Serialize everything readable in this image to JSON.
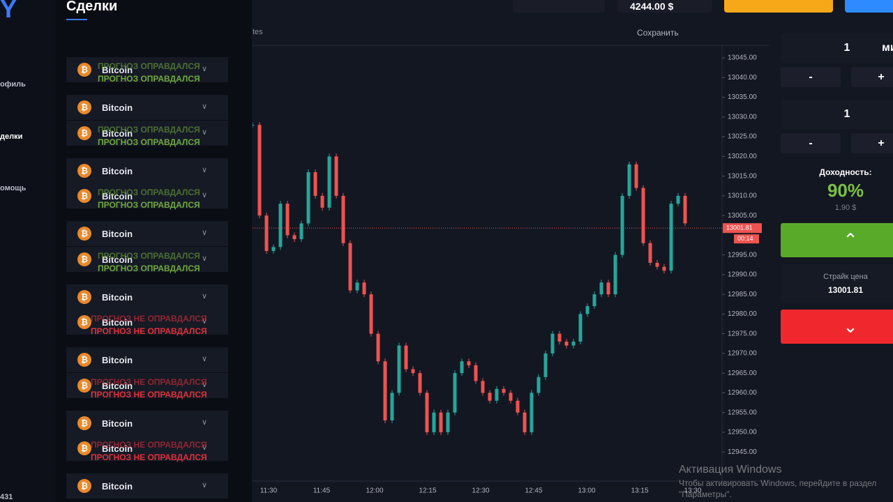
{
  "sidebar": {
    "nav": [
      "офиль",
      "делки",
      "омощь"
    ],
    "footer": "431"
  },
  "deals": {
    "title": "Сделки",
    "items": [
      {
        "asset": "Bitcoin",
        "status": "ПРОГНОЗ ОПРАВДАЛСЯ"
      },
      {
        "asset": "Bitcoin",
        "status": "ПРОГНОЗ ОПРАВДАЛСЯ"
      },
      {
        "asset": "Bitcoin",
        "status": "ПРОГНОЗ ОПРАВДАЛСЯ"
      },
      {
        "asset": "Bitcoin",
        "status": "ПРОГНОЗ ОПРАВДАЛСЯ"
      },
      {
        "asset": "Bitcoin",
        "status": "ПРОГНОЗ ОПРАВДАЛСЯ"
      },
      {
        "asset": "Bitcoin",
        "status": "ПРОГНОЗ ОПРАВДАЛСЯ"
      },
      {
        "asset": "Bitcoin",
        "status": "ПРОГНОЗ ОПРАВДАЛСЯ"
      },
      {
        "asset": "Bitcoin",
        "status": "ПРОГНОЗ ОПРАВДАЛСЯ"
      },
      {
        "asset": "Bitcoin",
        "status": "ПРОГНОЗ НЕ ОПРАВДАЛСЯ"
      },
      {
        "asset": "Bitcoin",
        "status": "ПРОГНОЗ НЕ ОПРАВДАЛСЯ"
      },
      {
        "asset": "Bitcoin",
        "status": "ПРОГНОЗ НЕ ОПРАВДАЛСЯ"
      },
      {
        "asset": "Bitcoin",
        "status": "ПРОГНОЗ НЕ ОПРАВДАЛСЯ"
      },
      {
        "asset": "Bitcoin",
        "status": "ПРОГНОЗ НЕ ОПРАВДАЛСЯ"
      },
      {
        "asset": "Bitcoin",
        "status": "ПРОГНОЗ НЕ ОПРАВДАЛСЯ"
      }
    ]
  },
  "topbar": {
    "balance": "4244.00 $"
  },
  "toolbar": {
    "interval": "tes",
    "save": "Сохранить"
  },
  "chart_data": {
    "type": "candlestick",
    "closes": [
      13028,
      13005,
      12996,
      12997,
      13008,
      13000,
      12999,
      13003,
      13016,
      13010,
      13007,
      13020,
      13010,
      12998,
      12986,
      12988,
      12985,
      12975,
      12968,
      12953,
      12960,
      12972,
      12966,
      12965,
      12960,
      12950,
      12955,
      12950,
      12955,
      12965,
      12968,
      12967,
      12963,
      12960,
      12958,
      12961,
      12960,
      12958,
      12955,
      12950,
      12960,
      12964,
      12970,
      12975,
      12973,
      12972,
      12973,
      12980,
      12982,
      12985,
      12988,
      12985,
      12995,
      13010,
      13018,
      13012,
      12998,
      12993,
      12992,
      12991,
      13008,
      13010,
      13003
    ],
    "x_labels": [
      "11:30",
      "11:45",
      "12:00",
      "12:15",
      "12:30",
      "12:45",
      "13:00",
      "13:15",
      "13:30"
    ],
    "ylim": [
      12937.6,
      13048.2
    ],
    "yticks": [
      {
        "value": 12945,
        "label": "12945.00"
      },
      {
        "value": 12950,
        "label": "12950.00"
      },
      {
        "value": 12955,
        "label": "12955.00"
      },
      {
        "value": 12960,
        "label": "12960.00"
      },
      {
        "value": 12965,
        "label": "12965.00"
      },
      {
        "value": 12970,
        "label": "12970.00"
      },
      {
        "value": 12975,
        "label": "12975.00"
      },
      {
        "value": 12980,
        "label": "12980.00"
      },
      {
        "value": 12985,
        "label": "12985.00"
      },
      {
        "value": 12990,
        "label": "12990.00"
      },
      {
        "value": 12995,
        "label": "12995.00"
      },
      {
        "value": 13005,
        "label": "13005.00"
      },
      {
        "value": 13010,
        "label": "13010.00"
      },
      {
        "value": 13015,
        "label": "13015.00"
      },
      {
        "value": 13020,
        "label": "13020.00"
      },
      {
        "value": 13025,
        "label": "13025.00"
      },
      {
        "value": 13030,
        "label": "13030.00"
      },
      {
        "value": 13035,
        "label": "13035.00"
      },
      {
        "value": 13040,
        "label": "13040.00"
      },
      {
        "value": 13045,
        "label": "13045.00"
      }
    ],
    "current_price": 13001.81,
    "countdown": "00:14",
    "up_color": "#26a69a",
    "down_color": "#ef5350"
  },
  "trade_panel": {
    "time": "1",
    "time_unit": "ми",
    "minus": "-",
    "plus": "+",
    "amount": "1",
    "payout_label": "Доходность:",
    "payout": "90%",
    "payout_amount": "1.90 $",
    "strike_label": "Страйк цена",
    "strike": "13001.81"
  },
  "watermark": {
    "title": "Активация Windows",
    "line1": "Чтобы активировать Windows, перейдите в раздел",
    "line2": "\"Параметры\"."
  }
}
